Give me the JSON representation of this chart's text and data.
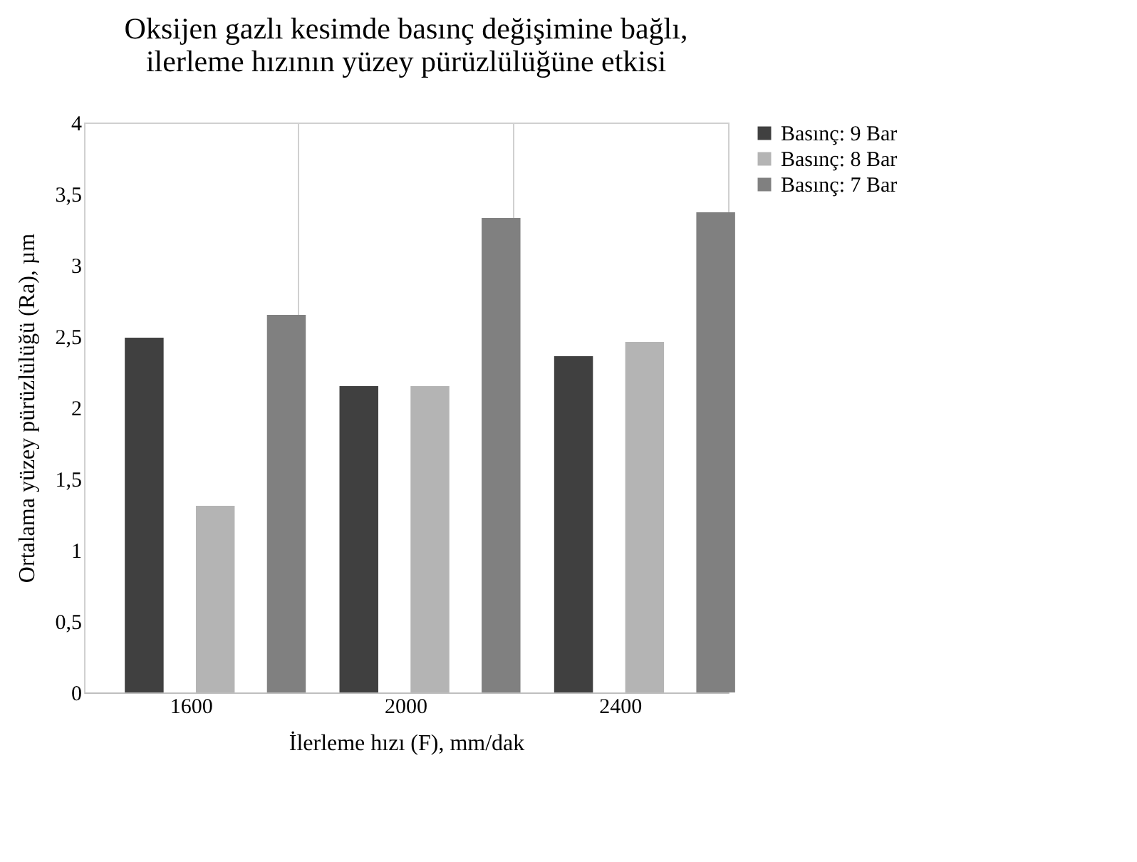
{
  "chart_data": {
    "type": "bar",
    "title": "Oksijen gazlı kesimde basınç değişimine bağlı, ilerleme hızının yüzey pürüzlülüğüne etkisi",
    "xlabel": "İlerleme hızı (F), mm/dak",
    "ylabel": "Ortalama yüzey pürüzlülüğü  (Ra), µm",
    "categories": [
      "1600",
      "2000",
      "2400"
    ],
    "series": [
      {
        "name": "Basınç: 9 Bar",
        "color": "#404040",
        "values": [
          2.49,
          2.15,
          2.36
        ]
      },
      {
        "name": "Basınç: 8 Bar",
        "color": "#b4b4b4",
        "values": [
          1.31,
          2.15,
          2.46
        ]
      },
      {
        "name": "Basınç: 7 Bar",
        "color": "#808080",
        "values": [
          2.65,
          3.33,
          3.37
        ]
      }
    ],
    "ylim": [
      0,
      4
    ],
    "yticks": [
      0,
      {
        "value": 0.5,
        "label": "0,5"
      },
      1,
      {
        "value": 1.5,
        "label": "1,5"
      },
      2,
      {
        "value": 2.5,
        "label": "2,5"
      },
      3,
      {
        "value": 3.5,
        "label": "3,5"
      },
      4
    ],
    "grid": "x",
    "legend": "right"
  }
}
